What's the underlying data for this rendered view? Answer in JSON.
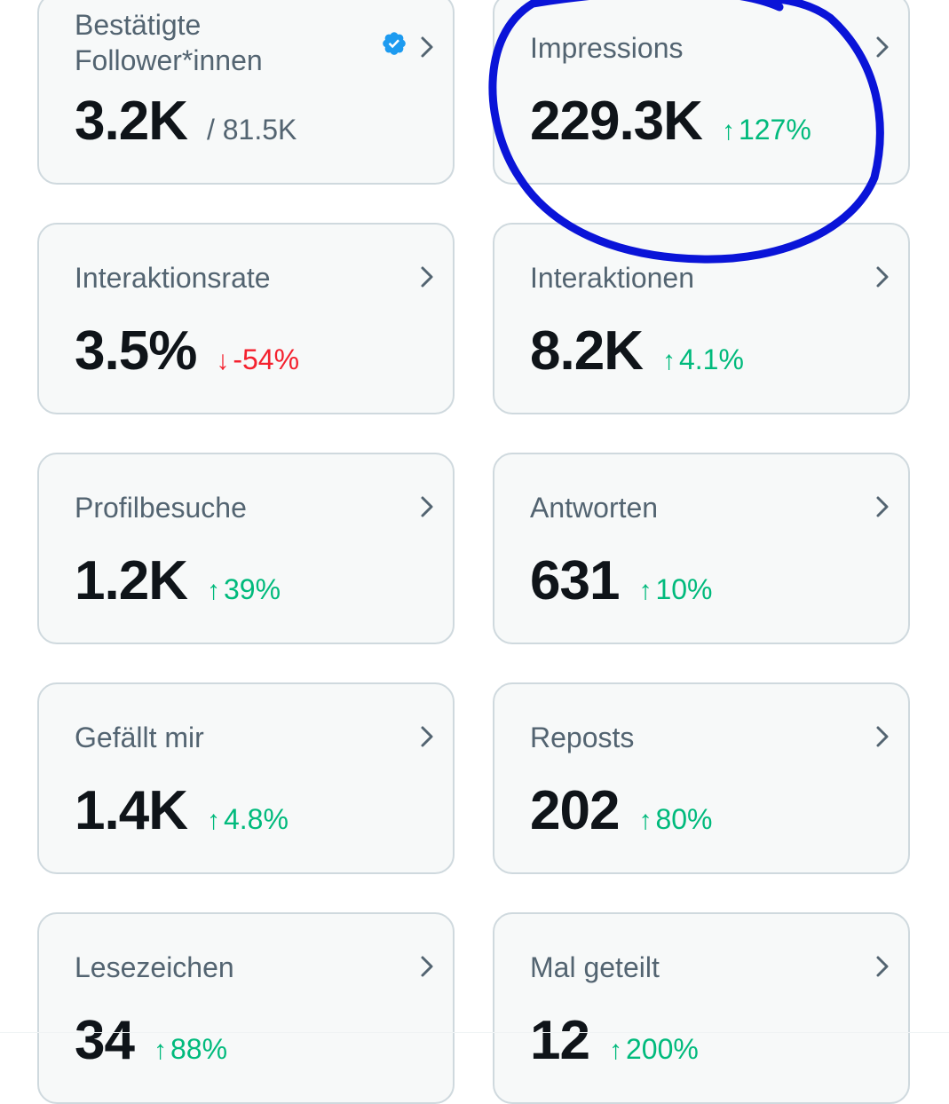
{
  "colors": {
    "up": "#00ba7c",
    "down": "#f4212e",
    "verified": "#1d9bf0",
    "annotation": "#0a14d8"
  },
  "cards": [
    {
      "label": "Bestätigte Follower*innen",
      "label_line1": "Bestätigte",
      "label_line2": "Follower*innen",
      "value": "3.2K",
      "total": "/ 81.5K",
      "icon": "verified-badge-icon"
    },
    {
      "label": "Impressions",
      "value": "229.3K",
      "arrow": "↑",
      "delta": "127%",
      "trend": "up"
    },
    {
      "label": "Interaktionsrate",
      "value": "3.5%",
      "arrow": "↓",
      "delta": "-54%",
      "trend": "down"
    },
    {
      "label": "Interaktionen",
      "value": "8.2K",
      "arrow": "↑",
      "delta": "4.1%",
      "trend": "up"
    },
    {
      "label": "Profilbesuche",
      "value": "1.2K",
      "arrow": "↑",
      "delta": "39%",
      "trend": "up"
    },
    {
      "label": "Antworten",
      "value": "631",
      "arrow": "↑",
      "delta": "10%",
      "trend": "up"
    },
    {
      "label": "Gefällt mir",
      "value": "1.4K",
      "arrow": "↑",
      "delta": "4.8%",
      "trend": "up"
    },
    {
      "label": "Reposts",
      "value": "202",
      "arrow": "↑",
      "delta": "80%",
      "trend": "up"
    },
    {
      "label": "Lesezeichen",
      "value": "34",
      "arrow": "↑",
      "delta": "88%",
      "trend": "up"
    },
    {
      "label": "Mal geteilt",
      "value": "12",
      "arrow": "↑",
      "delta": "200%",
      "trend": "up"
    }
  ]
}
